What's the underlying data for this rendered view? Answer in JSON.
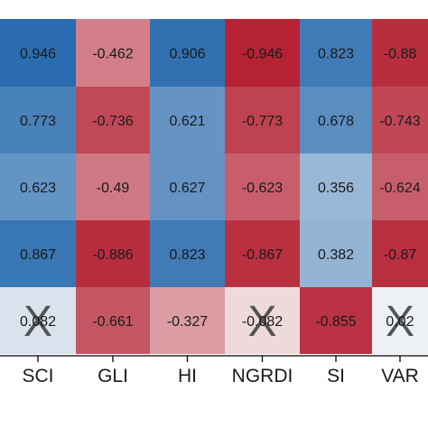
{
  "chart_data": {
    "type": "heatmap",
    "columns": [
      "SCI",
      "GLI",
      "HI",
      "NGRDI",
      "SI",
      "VAR"
    ],
    "rows": [
      {
        "values": [
          "0.946",
          "-0.462",
          "0.906",
          "-0.946",
          "0.823",
          "-0.88"
        ],
        "crossed": [
          false,
          false,
          false,
          false,
          false,
          false
        ]
      },
      {
        "values": [
          "0.773",
          "-0.736",
          "0.621",
          "-0.773",
          "0.678",
          "-0.743"
        ],
        "crossed": [
          false,
          false,
          false,
          false,
          false,
          false
        ]
      },
      {
        "values": [
          "0.623",
          "-0.49",
          "0.627",
          "-0.623",
          "0.356",
          "-0.624"
        ],
        "crossed": [
          false,
          false,
          false,
          false,
          false,
          false
        ]
      },
      {
        "values": [
          "0.867",
          "-0.886",
          "0.823",
          "-0.867",
          "0.382",
          "-0.87"
        ],
        "crossed": [
          false,
          false,
          false,
          false,
          false,
          false
        ]
      },
      {
        "values": [
          "0.082",
          "-0.661",
          "-0.327",
          "-0.082",
          "-0.855",
          "0.02"
        ],
        "crossed": [
          true,
          false,
          false,
          true,
          false,
          true
        ]
      }
    ],
    "cross_symbol": "X",
    "color_scale": {
      "min": -1,
      "max": 1,
      "negative": "#b2182b",
      "neutral": "#f7f7f7",
      "positive": "#2166ac"
    }
  }
}
